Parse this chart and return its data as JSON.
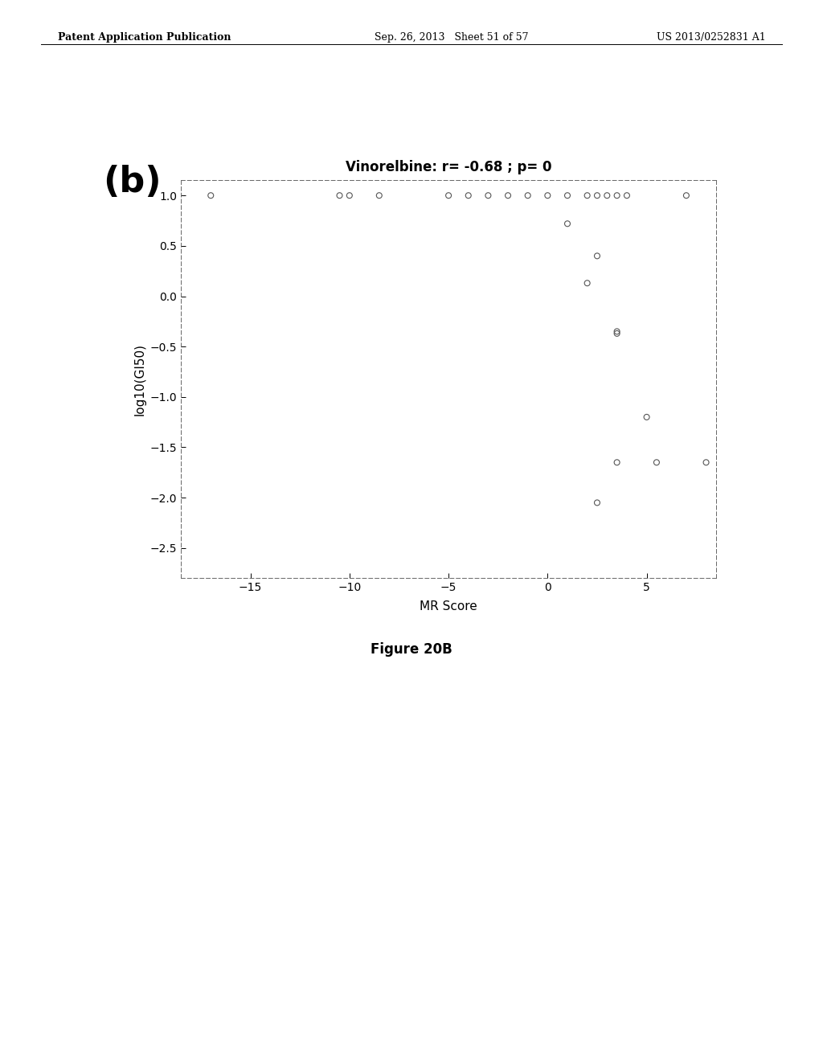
{
  "title": "Vinorelbine: r= -0.68 ; p= 0",
  "xlabel": "MR Score",
  "ylabel": "log10(GI50)",
  "label_b": "(b)",
  "figure_caption": "Figure 20B",
  "xlim": [
    -18.5,
    8.5
  ],
  "ylim": [
    -2.8,
    1.15
  ],
  "xticks": [
    -15,
    -10,
    -5,
    0,
    5
  ],
  "yticks": [
    1.0,
    0.5,
    0.0,
    -0.5,
    -1.0,
    -1.5,
    -2.0,
    -2.5
  ],
  "scatter_x": [
    -17.0,
    -10.5,
    -10.0,
    -8.5,
    -5.0,
    -4.0,
    -3.0,
    -2.0,
    -1.0,
    0.0,
    1.0,
    2.0,
    2.5,
    3.0,
    3.5,
    4.0,
    7.0,
    1.0,
    2.5,
    2.0,
    3.5,
    3.5,
    5.0,
    3.5,
    2.5,
    5.5,
    8.0
  ],
  "scatter_y": [
    1.0,
    1.0,
    1.0,
    1.0,
    1.0,
    1.0,
    1.0,
    1.0,
    1.0,
    1.0,
    1.0,
    1.0,
    1.0,
    1.0,
    1.0,
    1.0,
    1.0,
    0.72,
    0.4,
    0.13,
    -0.35,
    -0.37,
    -1.2,
    -1.65,
    -2.05,
    -1.65,
    -1.65
  ],
  "marker_color": "none",
  "marker_edge_color": "#555555",
  "marker_size": 5,
  "background_color": "#ffffff",
  "plot_bg_color": "#ffffff",
  "header_left": "Patent Application Publication",
  "header_center": "Sep. 26, 2013   Sheet 51 of 57",
  "header_right": "US 2013/0252831 A1",
  "title_fontsize": 12,
  "axis_label_fontsize": 11,
  "tick_fontsize": 10,
  "label_b_fontsize": 32,
  "caption_fontsize": 12
}
